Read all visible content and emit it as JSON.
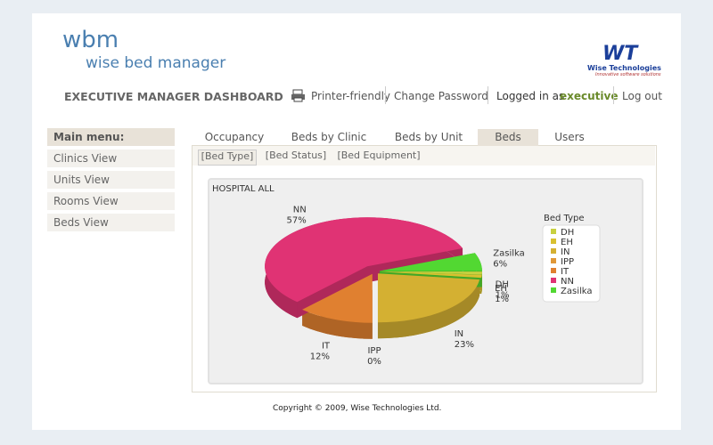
{
  "header": {
    "logo_short": "wbm",
    "logo_text": "wise bed manager",
    "company_logo": "WT",
    "company_name": "Wise Technologies",
    "company_tagline": "Innovative software solutions"
  },
  "nav": {
    "title": "EXECUTIVE MANAGER DASHBOARD",
    "printer": "Printer-friendly",
    "change_password": "Change Password",
    "logged_in_prefix": "Logged in as",
    "user": "executive",
    "logout": "Log out"
  },
  "menu": {
    "title": "Main menu:",
    "items": [
      "Clinics View",
      "Units View",
      "Rooms View",
      "Beds View"
    ]
  },
  "tabs": [
    "Occupancy",
    "Beds by Clinic",
    "Beds by Unit",
    "Beds",
    "Users"
  ],
  "subtabs": [
    "[Bed Type]",
    "[Bed Status]",
    "[Bed Equipment]"
  ],
  "chart": {
    "type": "pie",
    "title": "HOSPITAL ALL",
    "legend_title": "Bed Type",
    "categories": [
      "DH",
      "EH",
      "IN",
      "IPP",
      "IT",
      "NN",
      "Zasilka"
    ],
    "values": [
      1,
      1,
      23,
      0,
      12,
      57,
      6
    ],
    "value_labels": [
      "1%",
      "1%",
      "23%",
      "0%",
      "12%",
      "57%",
      "6%"
    ],
    "colors": [
      "#c8d040",
      "#d8c030",
      "#d4b032",
      "#e09838",
      "#e08030",
      "#e03374",
      "#52d832"
    ]
  },
  "footer": {
    "copyright": "Copyright © 2009, Wise Technologies Ltd."
  }
}
